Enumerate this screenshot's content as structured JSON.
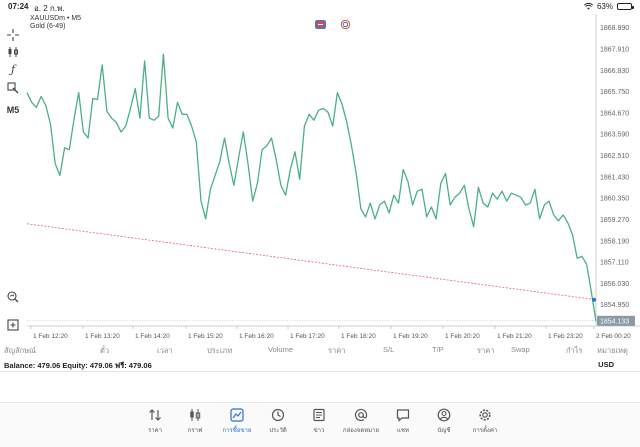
{
  "status_bar": {
    "time": "07:24",
    "date": "อ. 2 ก.พ.",
    "battery": "63%",
    "battery_level": 0.63
  },
  "chart": {
    "symbol": "XAUUSDm • M5",
    "subtitle": "Gold (6-49)",
    "timeframe_label": "M5",
    "current_price": "1854.133",
    "colors": {
      "line": "#4caf82",
      "trend": "#e06666",
      "price_tag": "#8a9aa6",
      "marker": "#1f77d0"
    }
  },
  "chart_data": {
    "type": "line",
    "title": "XAUUSDm • M5",
    "x_tick_labels": [
      "1 Feb 12:20",
      "1 Feb 13:20",
      "1 Feb 14:20",
      "1 Feb 15:20",
      "1 Feb 16:20",
      "1 Feb 17:20",
      "1 Feb 18:20",
      "1 Feb 19:20",
      "1 Feb 20:20",
      "1 Feb 21:20",
      "1 Feb 23:20",
      "2 Feb 00:20"
    ],
    "y_tick_labels": [
      "1868.990",
      "1867.910",
      "1866.830",
      "1865.750",
      "1864.670",
      "1863.590",
      "1862.510",
      "1861.430",
      "1860.350",
      "1859.270",
      "1858.190",
      "1857.110",
      "1856.030",
      "1854.950"
    ],
    "ylim": [
      1853.87,
      1869.53
    ],
    "series": [
      {
        "values": [
          1865.7,
          1865.2,
          1864.95,
          1865.5,
          1865.05,
          1864.1,
          1862.1,
          1861.5,
          1862.9,
          1862.8,
          1864.35,
          1865.7,
          1863.7,
          1863.4,
          1865.4,
          1865.35,
          1867.1,
          1864.75,
          1864.4,
          1864.2,
          1863.7,
          1864.0,
          1864.9,
          1865.9,
          1864.4,
          1867.3,
          1864.4,
          1864.3,
          1864.5,
          1867.65,
          1864.4,
          1863.9,
          1865.2,
          1864.6,
          1864.6,
          1864.0,
          1863.2,
          1860.2,
          1859.3,
          1860.8,
          1861.5,
          1862.2,
          1863.4,
          1862.1,
          1861.0,
          1862.4,
          1863.7,
          1862.1,
          1860.2,
          1861.1,
          1862.8,
          1863.0,
          1863.4,
          1862.3,
          1861.0,
          1860.5,
          1861.8,
          1862.7,
          1861.3,
          1864.0,
          1864.6,
          1864.3,
          1864.8,
          1864.9,
          1864.7,
          1864.0,
          1865.7,
          1865.1,
          1864.2,
          1863.0,
          1861.6,
          1859.8,
          1859.4,
          1860.1,
          1859.3,
          1860.0,
          1860.2,
          1859.6,
          1860.5,
          1860.1,
          1861.8,
          1861.2,
          1860.0,
          1860.7,
          1860.8,
          1859.4,
          1859.9,
          1859.3,
          1861.1,
          1861.6,
          1860.0,
          1860.4,
          1860.6,
          1861.0,
          1859.8,
          1858.9,
          1860.9,
          1860.1,
          1859.9,
          1860.6,
          1860.3,
          1860.7,
          1860.2,
          1860.6,
          1860.5,
          1860.4,
          1860.0,
          1860.1,
          1860.8,
          1859.3,
          1860.0,
          1860.2,
          1859.5,
          1859.2,
          1859.5,
          1859.1,
          1858.5,
          1857.3,
          1857.4,
          1857.0,
          1855.6,
          1854.1
        ]
      }
    ],
    "trend_line": {
      "start": 1859.05,
      "end": 1855.2
    },
    "last_price": 1854.133,
    "grid": false,
    "legend": "none"
  },
  "columns": {
    "symbol": "สัญลักษณ์",
    "ticket": "ตั๋ว",
    "time": "เวลา",
    "type": "ประเภท",
    "volume": "Volume",
    "price": "ราคา",
    "sl": "S/L",
    "tp": "T/P",
    "price2": "ราคา",
    "swap": "Swap",
    "profit": "กำไร",
    "comment": "หมายเหตุ"
  },
  "balance": {
    "text": "Balance: 479.06 Equity: 479.06 ฟรี: 479.06",
    "currency": "USD"
  },
  "nav": [
    {
      "label": "ราคา",
      "icon": "quotes-icon"
    },
    {
      "label": "กราฟ",
      "icon": "chart-icon"
    },
    {
      "label": "การซื้อขาย",
      "icon": "trade-icon",
      "active": true
    },
    {
      "label": "ประวัติ",
      "icon": "history-icon"
    },
    {
      "label": "ข่าว",
      "icon": "news-icon"
    },
    {
      "label": "กล่องจดหมาย",
      "icon": "mailbox-icon"
    },
    {
      "label": "แชท",
      "icon": "chat-icon"
    },
    {
      "label": "บัญชี",
      "icon": "account-icon"
    },
    {
      "label": "การตั้งค่า",
      "icon": "settings-icon"
    }
  ]
}
